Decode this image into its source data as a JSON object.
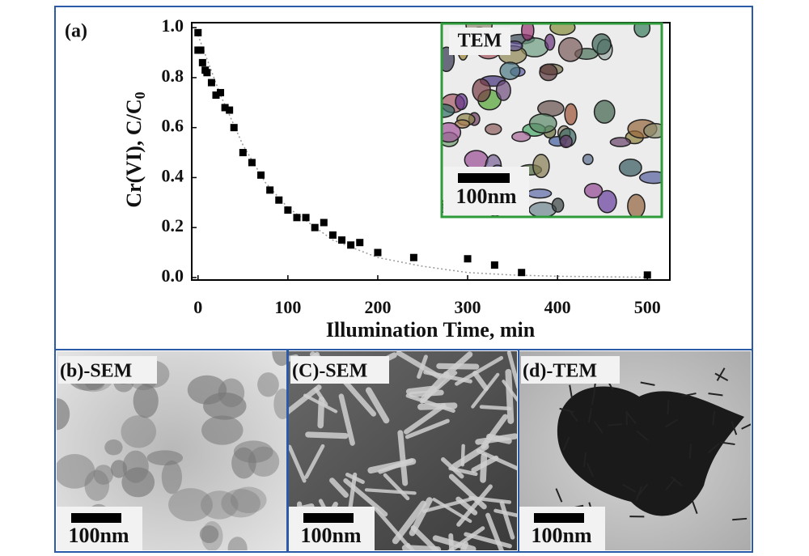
{
  "chart_data": {
    "type": "scatter",
    "xlabel": "Illumination Time, min",
    "ylabel": "Cr(VI), C/C",
    "ylabel_subscript": "0",
    "x": [
      0,
      0,
      3,
      5,
      8,
      10,
      15,
      20,
      25,
      30,
      35,
      40,
      50,
      60,
      70,
      80,
      90,
      100,
      110,
      120,
      130,
      140,
      150,
      160,
      170,
      180,
      200,
      240,
      300,
      330,
      360,
      500
    ],
    "values": [
      0.98,
      0.91,
      0.91,
      0.86,
      0.83,
      0.82,
      0.78,
      0.73,
      0.74,
      0.68,
      0.67,
      0.6,
      0.5,
      0.46,
      0.41,
      0.35,
      0.31,
      0.27,
      0.24,
      0.24,
      0.2,
      0.22,
      0.17,
      0.15,
      0.13,
      0.14,
      0.1,
      0.08,
      0.075,
      0.05,
      0.02,
      0.01
    ],
    "color": "#000000",
    "fit": {
      "x": [
        0,
        25,
        50,
        75,
        100,
        150,
        200,
        250,
        300,
        350,
        400,
        500
      ],
      "values": [
        0.97,
        0.73,
        0.53,
        0.38,
        0.28,
        0.15,
        0.08,
        0.045,
        0.02,
        0.01,
        0.005,
        0.001
      ],
      "color": "#999999"
    },
    "xlim": [
      -7,
      525
    ],
    "ylim": [
      -0.01,
      1.02
    ],
    "xticks": [
      0,
      100,
      200,
      300,
      400,
      500
    ],
    "yticks": [
      {
        "value": 0,
        "label": "0.0"
      },
      {
        "value": 0.2,
        "label": "0.2"
      },
      {
        "value": 0.4,
        "label": "0.4"
      },
      {
        "value": 0.6,
        "label": "0.6"
      },
      {
        "value": 0.8,
        "label": "0.8"
      },
      {
        "value": 1,
        "label": "1.0"
      }
    ]
  },
  "panel_a": {
    "label": "(a)"
  },
  "inset": {
    "label": "TEM",
    "scale": "100nm"
  },
  "panels": [
    {
      "label": "(b)-SEM",
      "scale": "100nm"
    },
    {
      "label": "(C)-SEM",
      "scale": "100nm"
    },
    {
      "label": "(d)-TEM",
      "scale": "100nm"
    }
  ]
}
